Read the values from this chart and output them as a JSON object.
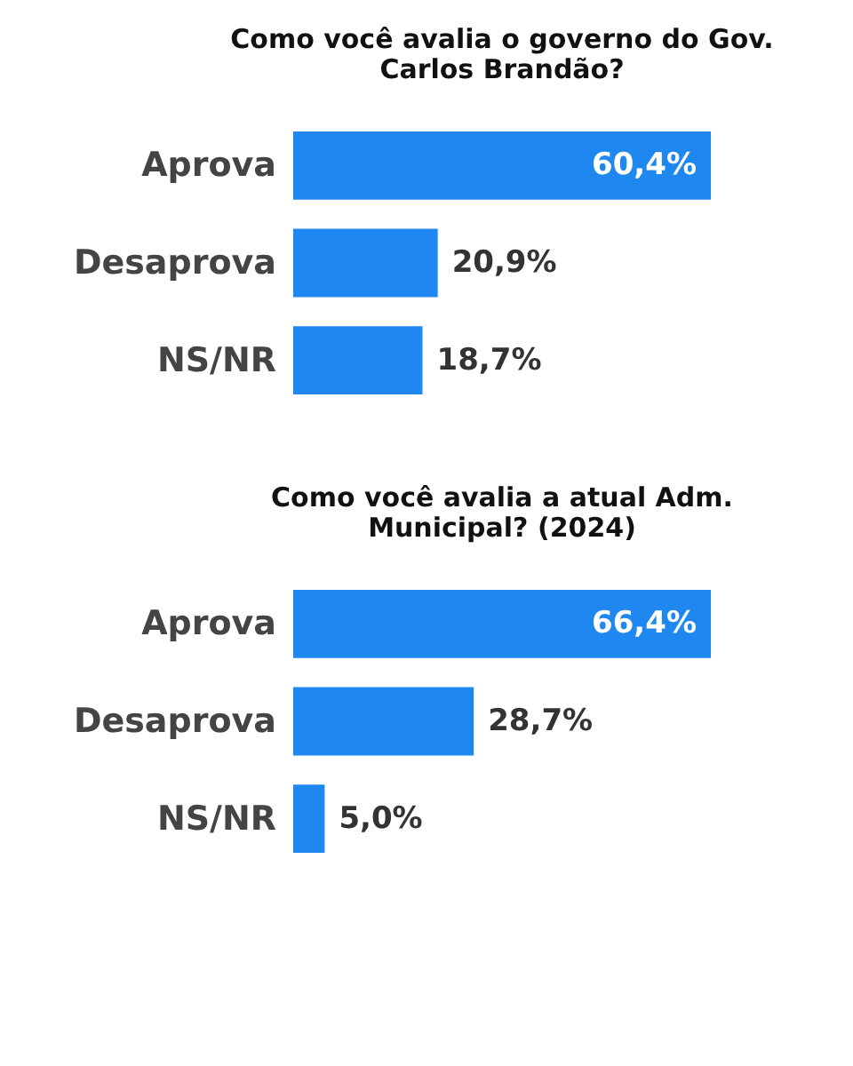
{
  "chart_data": [
    {
      "type": "bar",
      "orientation": "horizontal",
      "title": "Como você avalia o governo do Gov. Carlos Brandão?",
      "categories": [
        "Aprova",
        "Desaprova",
        "NS/NR"
      ],
      "values": [
        60.4,
        20.9,
        18.7
      ],
      "value_labels": [
        "60,4%",
        "20,9%",
        "18,7%"
      ],
      "color": "#1e88f0",
      "tick_labels": "y"
    },
    {
      "type": "bar",
      "orientation": "horizontal",
      "title": "Como você avalia a atual Adm. Municipal? (2024)",
      "categories": [
        "Aprova",
        "Desaprova",
        "NS/NR"
      ],
      "values": [
        66.4,
        28.7,
        5.0
      ],
      "value_labels": [
        "66,4%",
        "28,7%",
        "5,0%"
      ],
      "color": "#1e88f0",
      "tick_labels": "y"
    }
  ]
}
